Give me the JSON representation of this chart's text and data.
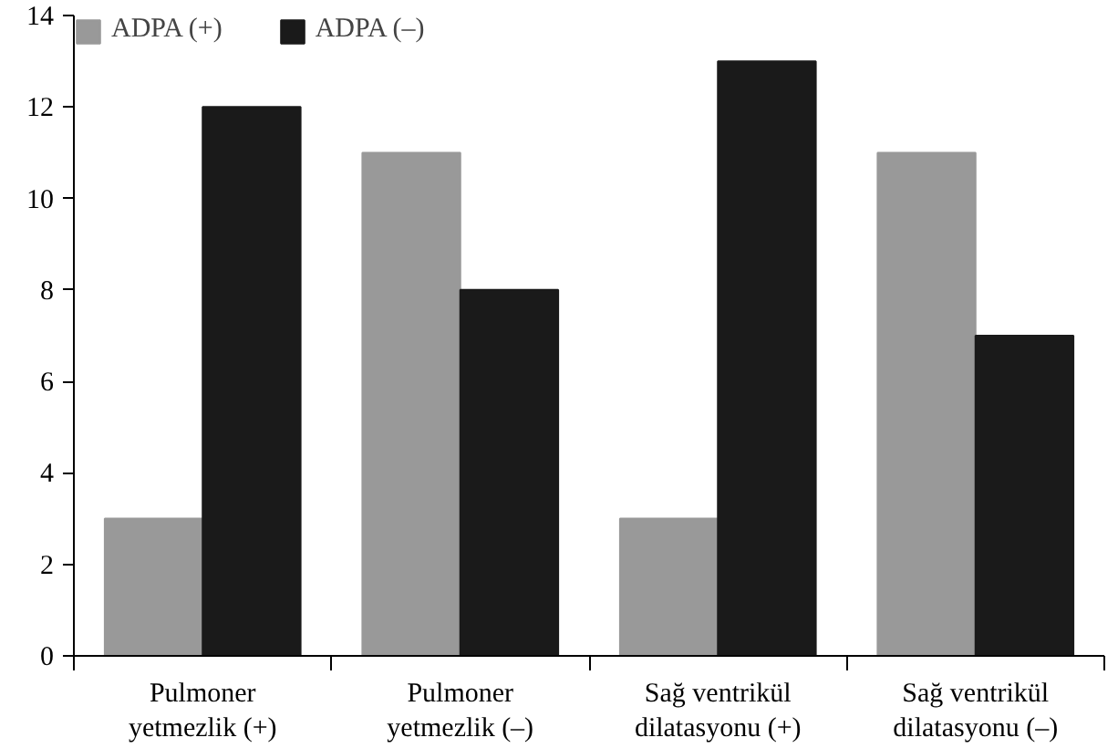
{
  "chart_data": {
    "type": "bar",
    "categories": [
      "Pulmoner\nyetmezlik (+)",
      "Pulmoner\nyetmezlik (–)",
      "Sağ ventrikül\ndilatasyonu (+)",
      "Sağ ventrikül\ndilatasyonu (–)"
    ],
    "series": [
      {
        "name": "ADPA (+)",
        "color": "#999999",
        "values": [
          3,
          11,
          3,
          11
        ]
      },
      {
        "name": "ADPA (–)",
        "color": "#1a1a1a",
        "values": [
          12,
          8,
          13,
          7
        ]
      }
    ],
    "ylim": [
      0,
      14
    ],
    "yticks": [
      0,
      2,
      4,
      6,
      8,
      10,
      12,
      14
    ],
    "grid": false,
    "legend": "top left"
  }
}
